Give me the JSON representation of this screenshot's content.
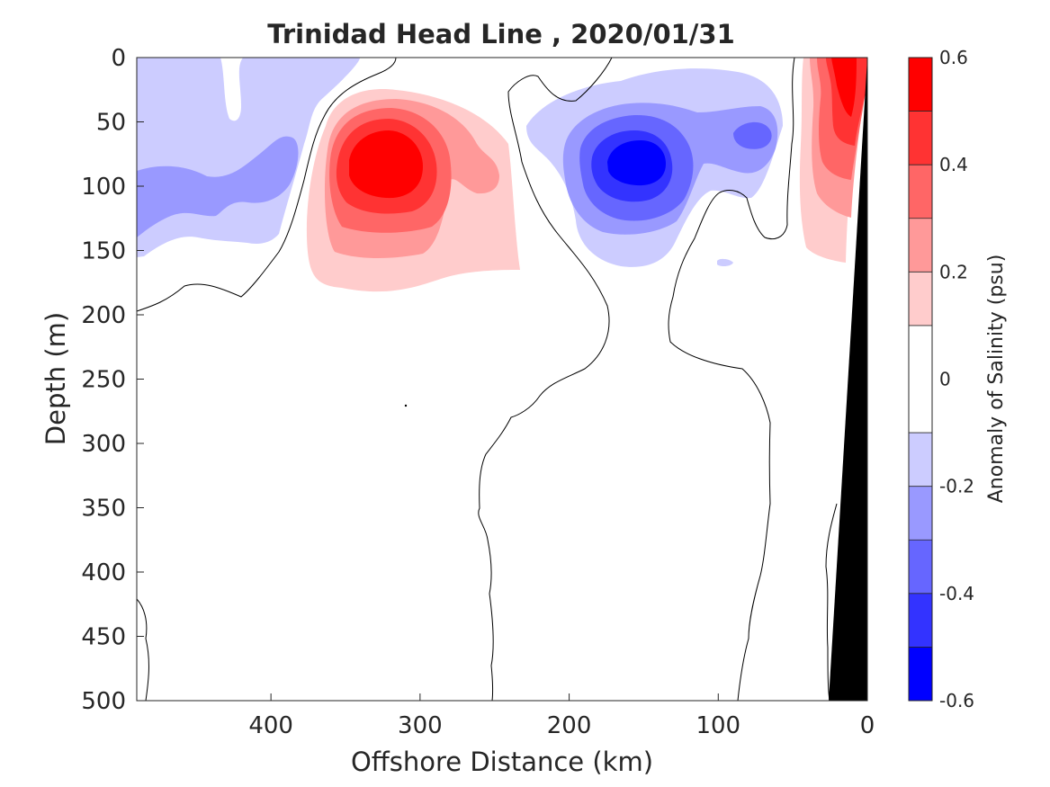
{
  "chart_data": {
    "type": "heatmap",
    "title": "Trinidad Head Line , 2020/01/31",
    "xlabel": "Offshore Distance (km)",
    "ylabel": "Depth (m)",
    "colorbar_label": "Anomaly of Salinity (psu)",
    "xlim": [
      490,
      0
    ],
    "ylim": [
      0,
      500
    ],
    "x_ticks": [
      {
        "value": 400,
        "label": "400"
      },
      {
        "value": 300,
        "label": "300"
      },
      {
        "value": 200,
        "label": "200"
      },
      {
        "value": 100,
        "label": "100"
      },
      {
        "value": 0,
        "label": "0"
      }
    ],
    "y_ticks": [
      {
        "value": 0,
        "label": "0"
      },
      {
        "value": 50,
        "label": "50"
      },
      {
        "value": 100,
        "label": "100"
      },
      {
        "value": 150,
        "label": "150"
      },
      {
        "value": 200,
        "label": "200"
      },
      {
        "value": 250,
        "label": "250"
      },
      {
        "value": 300,
        "label": "300"
      },
      {
        "value": 350,
        "label": "350"
      },
      {
        "value": 400,
        "label": "400"
      },
      {
        "value": 450,
        "label": "450"
      },
      {
        "value": 500,
        "label": "500"
      }
    ],
    "colorbar": {
      "range": [
        -0.6,
        0.6
      ],
      "levels": [
        -0.6,
        -0.5,
        -0.4,
        -0.3,
        -0.2,
        -0.1,
        0.1,
        0.2,
        0.3,
        0.4,
        0.5,
        0.6
      ],
      "bands": [
        {
          "from": -0.6,
          "to": -0.5,
          "color": "#0000ff"
        },
        {
          "from": -0.5,
          "to": -0.4,
          "color": "#3333ff"
        },
        {
          "from": -0.4,
          "to": -0.3,
          "color": "#6666ff"
        },
        {
          "from": -0.3,
          "to": -0.2,
          "color": "#9999ff"
        },
        {
          "from": -0.2,
          "to": -0.1,
          "color": "#ccccff"
        },
        {
          "from": -0.1,
          "to": 0.1,
          "color": "#ffffff"
        },
        {
          "from": 0.1,
          "to": 0.2,
          "color": "#ffcccc"
        },
        {
          "from": 0.2,
          "to": 0.3,
          "color": "#ff9999"
        },
        {
          "from": 0.3,
          "to": 0.4,
          "color": "#ff6666"
        },
        {
          "from": 0.4,
          "to": 0.5,
          "color": "#ff3333"
        },
        {
          "from": 0.5,
          "to": 0.6,
          "color": "#ff0000"
        }
      ],
      "tick_labels": [
        {
          "value": 0.6,
          "label": "0.6"
        },
        {
          "value": 0.4,
          "label": "0.4"
        },
        {
          "value": 0.2,
          "label": "0.2"
        },
        {
          "value": 0,
          "label": "0"
        },
        {
          "value": -0.2,
          "label": "-0.2"
        },
        {
          "value": -0.4,
          "label": "-0.4"
        },
        {
          "value": -0.6,
          "label": "-0.6"
        }
      ]
    },
    "features": [
      {
        "name": "offshore-salty-eddy",
        "kind": "positive",
        "center": [
          320,
          85
        ],
        "peak": 0.6
      },
      {
        "name": "mid-fresh-eddy",
        "kind": "negative",
        "center": [
          150,
          80
        ],
        "peak": -0.6
      },
      {
        "name": "nearshore-salty-core",
        "kind": "positive",
        "center": [
          15,
          30
        ],
        "peak": 0.6
      },
      {
        "name": "western-fresh-layer",
        "kind": "negative",
        "center": [
          450,
          100
        ],
        "peak": -0.3
      },
      {
        "name": "small-fresh-core",
        "kind": "negative",
        "center": [
          65,
          60
        ],
        "peak": -0.4
      }
    ],
    "bathymetry": [
      [
        0,
        0
      ],
      [
        25,
        500
      ]
    ]
  }
}
